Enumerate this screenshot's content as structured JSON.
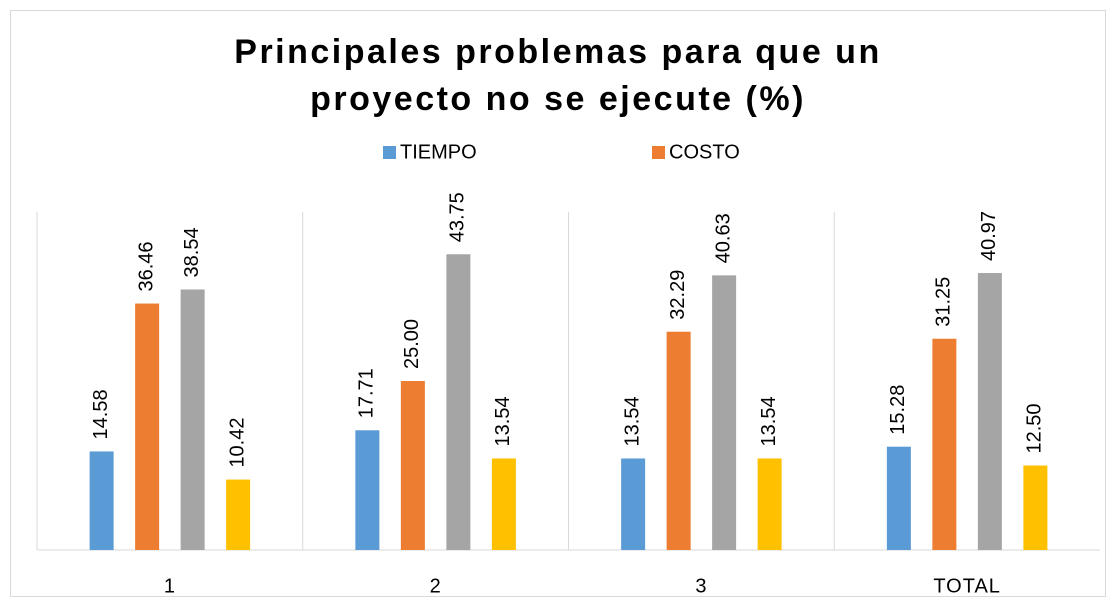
{
  "chart_data": {
    "type": "bar",
    "title": [
      "Principales problemas para que un",
      "proyecto no se ejecute (%)"
    ],
    "categories": [
      "1",
      "2",
      "3",
      "TOTAL"
    ],
    "series": [
      {
        "name": "TIEMPO",
        "color": "#5b9bd5",
        "values": [
          14.58,
          17.71,
          13.54,
          15.28
        ],
        "value_labels": [
          "14.58",
          "17.71",
          "13.54",
          "15.28"
        ]
      },
      {
        "name": "COSTO",
        "color": "#ed7d31",
        "values": [
          36.46,
          25.0,
          32.29,
          31.25
        ],
        "value_labels": [
          "36.46",
          "25.00",
          "32.29",
          "31.25"
        ]
      },
      {
        "color": "#a5a5a5",
        "values": [
          38.54,
          43.75,
          40.63,
          40.97
        ],
        "value_labels": [
          "38.54",
          "43.75",
          "40.63",
          "40.97"
        ]
      },
      {
        "color": "#ffc000",
        "values": [
          10.42,
          13.54,
          13.54,
          12.5
        ],
        "value_labels": [
          "10.42",
          "13.54",
          "13.54",
          "12.50"
        ]
      }
    ],
    "ylim": [
      0,
      50
    ],
    "legend": "top"
  }
}
